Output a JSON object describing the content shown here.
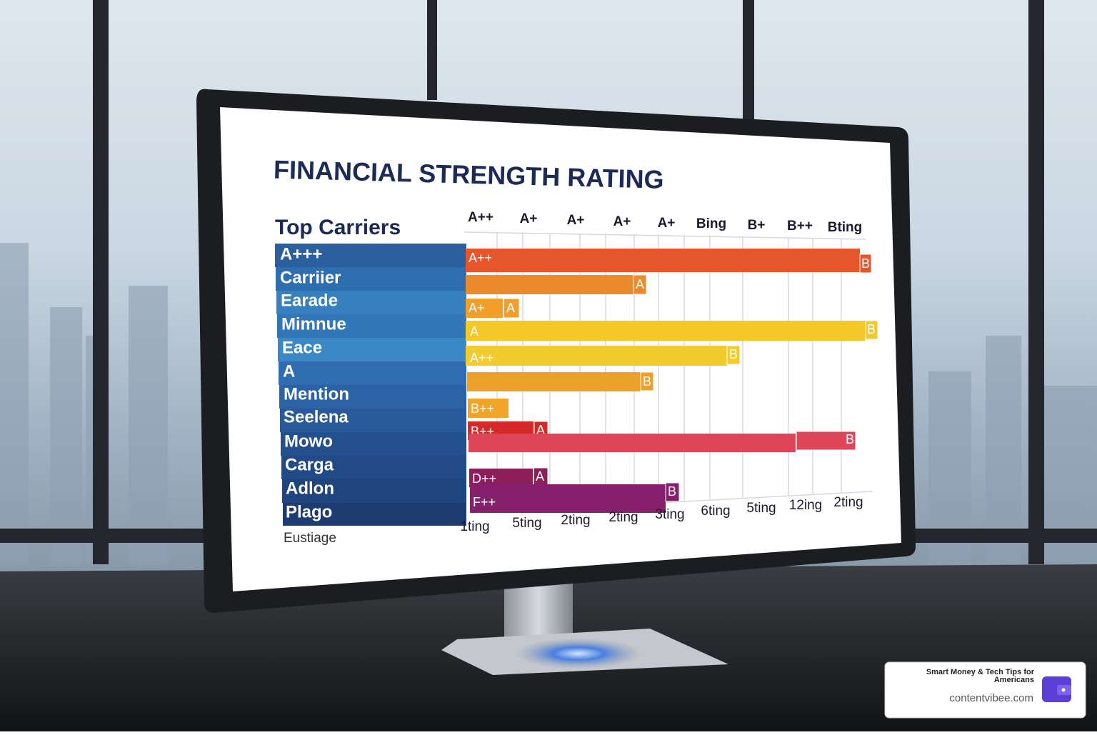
{
  "screen": {
    "title": "FINANCIAL STRENGTH RATING",
    "subtitle": "Top Carriers",
    "rows": [
      "A+++",
      "Carriier",
      "Earade",
      "Mimnue",
      "Eace",
      "A",
      "Mention",
      "Seelena",
      "Mowo",
      "Carga",
      "Adlon",
      "Plago"
    ],
    "top_labels": [
      "A++",
      "A+",
      "A+",
      "A+",
      "A+",
      "Bing",
      "B+",
      "B++",
      "Bting"
    ],
    "bars": [
      {
        "start": "A++",
        "end": "B"
      },
      {
        "end": "A"
      },
      {
        "start": "A+",
        "end": "A"
      },
      {
        "start": "A",
        "end": "B"
      },
      {
        "start": "A++",
        "end": "B"
      },
      {
        "end": "B"
      },
      {
        "start": "B++"
      },
      {
        "start": "B++",
        "end": "A"
      },
      {
        "end": "B"
      },
      {
        "start": "D++",
        "end": "A"
      },
      {
        "start": "F++",
        "end": "B"
      }
    ],
    "bottom_labels": [
      "1ting",
      "5ting",
      "2ting",
      "2ting",
      "3ting",
      "6ting",
      "5ting",
      "12ing",
      "2ting"
    ],
    "footnote": "Eustiage"
  },
  "badge": {
    "tagline": "Smart Money & Tech Tips for Americans",
    "site": "contentvibee.com"
  }
}
